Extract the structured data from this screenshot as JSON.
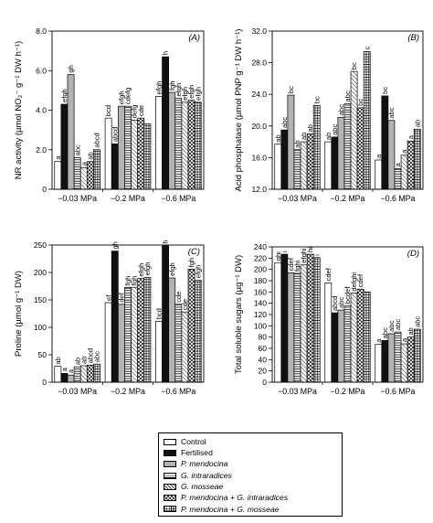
{
  "chart_data": [
    {
      "type": "bar",
      "panel_label": "(A)",
      "ylabel": "NR activity (µmol NO₂⁻ g⁻¹ DW h⁻¹)",
      "ylim": [
        0,
        8
      ],
      "yticks": [
        "0",
        "2.0",
        "4.0",
        "6.0",
        "8.0"
      ],
      "categories": [
        "−0.03 MPa",
        "−0.2 MPa",
        "−0.6 MPa"
      ],
      "series": [
        {
          "name": "Control",
          "values": [
            1.4,
            3.6,
            4.7
          ]
        },
        {
          "name": "Fertilised",
          "values": [
            4.3,
            2.3,
            6.7
          ]
        },
        {
          "name": "P. mendocina",
          "values": [
            5.8,
            4.2,
            4.9
          ]
        },
        {
          "name": "G. intraradices",
          "values": [
            1.6,
            4.2,
            4.6
          ]
        },
        {
          "name": "G. mosseae",
          "values": [
            1.1,
            3.5,
            4.4
          ]
        },
        {
          "name": "P. mendocina + G. intraradices",
          "values": [
            1.4,
            3.6,
            4.5
          ]
        },
        {
          "name": "P. mendocina + G. mosseae",
          "values": [
            2.0,
            3.3,
            4.4
          ]
        }
      ],
      "annotations": [
        [
          "a",
          "efgh",
          "gh",
          "abc",
          "a",
          "ab",
          "abcd"
        ],
        [
          "bcd",
          "abcd",
          "efgh",
          "cdefg",
          "defg",
          "cde",
          ""
        ],
        [
          "efgh",
          "h",
          "fgh",
          "efgh",
          "efgh",
          "efgh",
          "efgh"
        ]
      ]
    },
    {
      "type": "bar",
      "panel_label": "(B)",
      "ylabel": "Acid phosphatase (µmol PNP g⁻¹ DW h⁻¹)",
      "ylim": [
        12,
        32
      ],
      "yticks": [
        "12.0",
        "16.0",
        "20.0",
        "24.0",
        "28.0",
        "32.0"
      ],
      "categories": [
        "−0.03 MPa",
        "−0.2 MPa",
        "−0.6 MPa"
      ],
      "series": [
        {
          "name": "Control",
          "values": [
            17.7,
            18.0,
            15.7
          ]
        },
        {
          "name": "Fertilised",
          "values": [
            19.5,
            18.6,
            23.8
          ]
        },
        {
          "name": "P. mendocina",
          "values": [
            23.9,
            21.1,
            20.7
          ]
        },
        {
          "name": "G. intraradices",
          "values": [
            17.0,
            22.8,
            14.6
          ]
        },
        {
          "name": "G. mosseae",
          "values": [
            18.0,
            26.9,
            16.3
          ]
        },
        {
          "name": "P. mendocina + G. intraradices",
          "values": [
            19.0,
            22.3,
            18.1
          ]
        },
        {
          "name": "P. mendocina + G. mosseae",
          "values": [
            22.6,
            29.4,
            19.6
          ]
        }
      ],
      "annotations": [
        [
          "ab",
          "abc",
          "bc",
          "ab",
          "ab",
          "ab",
          "bc"
        ],
        [
          "ab",
          "abc",
          "abc",
          "abc",
          "bc",
          "bc",
          "c"
        ],
        [
          "a",
          "bc",
          "abc",
          "a",
          "a",
          "a",
          "ab"
        ]
      ]
    },
    {
      "type": "bar",
      "panel_label": "(C)",
      "ylabel": "Proline (µmol g⁻¹ DW)",
      "ylim": [
        0,
        250
      ],
      "yticks": [
        "0",
        "50",
        "100",
        "150",
        "200",
        "250"
      ],
      "categories": [
        "−0.03 MPa",
        "−0.2 MPa",
        "−0.6 MPa"
      ],
      "series": [
        {
          "name": "Control",
          "values": [
            29,
            145,
            111
          ]
        },
        {
          "name": "Fertilised",
          "values": [
            16,
            239,
            249
          ]
        },
        {
          "name": "P. mendocina",
          "values": [
            13,
            142,
            190
          ]
        },
        {
          "name": "G. intraradices",
          "values": [
            28,
            173,
            142
          ]
        },
        {
          "name": "G. mosseae",
          "values": [
            30,
            173,
            128
          ]
        },
        {
          "name": "P. mendocina + G. intraradices",
          "values": [
            31,
            189,
            206
          ]
        },
        {
          "name": "P. mendocina + G. mosseae",
          "values": [
            33,
            191,
            186
          ]
        }
      ],
      "annotations": [
        [
          "ab",
          "a",
          "a",
          "ab",
          "ab",
          "abcd",
          "abc"
        ],
        [
          "ef",
          "gh",
          "def",
          "fgh",
          "fgh",
          "efgh",
          "efgh"
        ],
        [
          "bcd",
          "h",
          "efgh",
          "cde",
          "cde",
          "fgh",
          "efgh"
        ]
      ]
    },
    {
      "type": "bar",
      "panel_label": "(D)",
      "ylabel": "Total soluble sugars (µg⁻¹ DW)",
      "ylim": [
        0,
        240
      ],
      "yticks": [
        "0",
        "20",
        "40",
        "60",
        "80",
        "100",
        "120",
        "140",
        "160",
        "180",
        "200",
        "220",
        "240"
      ],
      "categories": [
        "−0.03 MPa",
        "−0.2 MPa",
        "−0.6 MPa"
      ],
      "series": [
        {
          "name": "Control",
          "values": [
            212,
            176,
            67
          ]
        },
        {
          "name": "Fertilised",
          "values": [
            227,
            123,
            74
          ]
        },
        {
          "name": "P. mendocina",
          "values": [
            194,
            128,
            86
          ]
        },
        {
          "name": "G. intraradices",
          "values": [
            193,
            136,
            89
          ]
        },
        {
          "name": "G. mosseae",
          "values": [
            208,
            158,
            68
          ]
        },
        {
          "name": "P. mendocina + G. intraradices",
          "values": [
            227,
            165,
            80
          ]
        },
        {
          "name": "P. mendocina + G. mosseae",
          "values": [
            221,
            160,
            94
          ]
        }
      ],
      "annotations": [
        [
          "ghi",
          "i",
          "cdef",
          "fghi",
          "efghi",
          "hi",
          "i"
        ],
        [
          "cdef",
          "abcd",
          "abc",
          "bcdef",
          "defghi",
          "cdef",
          ""
        ],
        [
          "a",
          "abc",
          "abc",
          "abc",
          "a",
          "ab",
          "abc"
        ]
      ]
    }
  ],
  "legend": {
    "entries": [
      "Control",
      "Fertilised",
      "P. mendocina",
      "G. intraradices",
      "G. mosseae",
      "P. mendocina + G. intraradices",
      "P. mendocina + G. mosseae"
    ]
  },
  "colors": {
    "control": "#ffffff",
    "fertilised": "#111111",
    "p_mendocina": "#b3b3b3",
    "outline": "#000000"
  }
}
